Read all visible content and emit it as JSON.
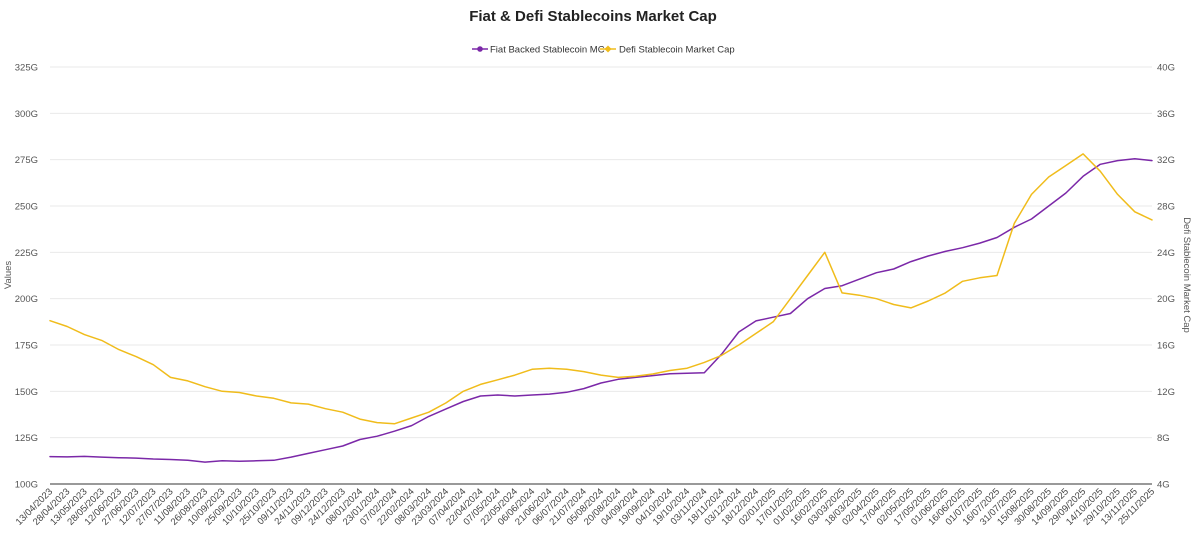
{
  "chart_data": {
    "type": "line",
    "title": "Fiat & Defi Stablecoins Market Cap",
    "ylabel": "Values",
    "y2label": "Defi Stablecoin Market Cap",
    "left_ticks": [
      "100G",
      "125G",
      "150G",
      "175G",
      "200G",
      "225G",
      "250G",
      "275G",
      "300G",
      "325G"
    ],
    "right_ticks": [
      "4G",
      "8G",
      "12G",
      "16G",
      "20G",
      "24G",
      "28G",
      "32G",
      "36G",
      "40G"
    ],
    "ylim": [
      100,
      325
    ],
    "y2lim": [
      4,
      40
    ],
    "x_labels": [
      "13/04/2023",
      "28/04/2023",
      "13/05/2023",
      "28/05/2023",
      "12/06/2023",
      "27/06/2023",
      "12/07/2023",
      "27/07/2023",
      "11/08/2023",
      "26/08/2023",
      "10/09/2023",
      "25/09/2023",
      "10/10/2023",
      "25/10/2023",
      "09/11/2023",
      "24/11/2023",
      "09/12/2023",
      "24/12/2023",
      "08/01/2024",
      "23/01/2024",
      "07/02/2024",
      "22/02/2024",
      "08/03/2024",
      "23/03/2024",
      "07/04/2024",
      "22/04/2024",
      "07/05/2024",
      "22/05/2024",
      "06/06/2024",
      "21/06/2024",
      "06/07/2024",
      "21/07/2024",
      "05/08/2024",
      "20/08/2024",
      "04/09/2024",
      "19/09/2024",
      "04/10/2024",
      "19/10/2024",
      "03/11/2024",
      "18/11/2024",
      "03/12/2024",
      "18/12/2024",
      "02/01/2025",
      "17/01/2025",
      "01/02/2025",
      "16/02/2025",
      "03/03/2025",
      "18/03/2025",
      "02/04/2025",
      "17/04/2025",
      "02/05/2025",
      "17/05/2025",
      "01/06/2025",
      "16/06/2025",
      "01/07/2025",
      "16/07/2025",
      "31/07/2025",
      "15/08/2025",
      "30/08/2025",
      "14/09/2025",
      "29/09/2025",
      "14/10/2025",
      "29/10/2025",
      "13/11/2025",
      "25/11/2025"
    ],
    "series": [
      {
        "name": "Fiat Backed Stablecoin MC",
        "axis": "left",
        "color": "#7b28a8",
        "marker": "circle",
        "values": [
          114.8,
          114.6,
          114.9,
          114.5,
          114.2,
          114.0,
          113.5,
          113.2,
          112.8,
          111.8,
          112.5,
          112.3,
          112.5,
          112.8,
          114.5,
          116.5,
          118.5,
          120.5,
          124.0,
          125.8,
          128.5,
          131.5,
          136.5,
          140.5,
          144.5,
          147.5,
          148.0,
          147.5,
          148.0,
          148.5,
          149.5,
          151.5,
          154.5,
          156.5,
          157.5,
          158.5,
          159.5,
          159.8,
          160.0,
          170.0,
          182.0,
          188.0,
          190.0,
          192.0,
          200.0,
          205.5,
          207.0,
          210.5,
          214.0,
          216.0,
          220.0,
          223.0,
          225.5,
          227.5,
          230.0,
          233.0,
          238.5,
          243.0,
          250.0,
          257.0,
          266.0,
          272.5,
          274.5,
          275.5,
          274.5
        ]
      },
      {
        "name": "Defi Stablecoin Market Cap",
        "axis": "right",
        "color": "#f0bc1b",
        "marker": "diamond",
        "values": [
          18.1,
          17.6,
          16.9,
          16.4,
          15.6,
          15.0,
          14.3,
          13.2,
          12.9,
          12.4,
          12.0,
          11.9,
          11.6,
          11.4,
          11.0,
          10.9,
          10.5,
          10.2,
          9.6,
          9.3,
          9.2,
          9.7,
          10.2,
          11.0,
          12.0,
          12.6,
          13.0,
          13.4,
          13.9,
          14.0,
          13.9,
          13.7,
          13.4,
          13.2,
          13.3,
          13.5,
          13.8,
          14.0,
          14.5,
          15.1,
          16.0,
          17.0,
          18.0,
          20.0,
          22.0,
          24.0,
          20.5,
          20.3,
          20.0,
          19.5,
          19.2,
          19.8,
          20.5,
          21.5,
          21.8,
          22.0,
          26.5,
          29.0,
          30.5,
          31.5,
          32.5,
          31.0,
          29.0,
          27.5,
          26.8
        ]
      }
    ]
  }
}
